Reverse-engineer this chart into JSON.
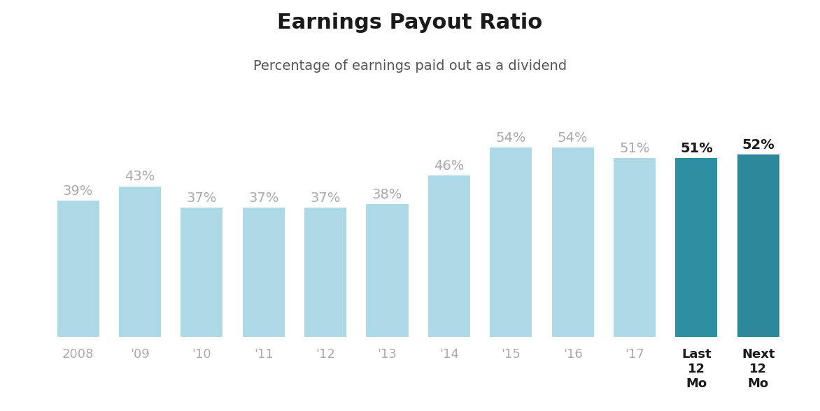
{
  "title": "Earnings Payout Ratio",
  "subtitle": "Percentage of earnings paid out as a dividend",
  "categories": [
    "2008",
    "'09",
    "'10",
    "'11",
    "'12",
    "'13",
    "'14",
    "'15",
    "'16",
    "'17",
    "Last\n12\nMo",
    "Next\n12\nMo"
  ],
  "values": [
    39,
    43,
    37,
    37,
    37,
    38,
    46,
    54,
    54,
    51,
    51,
    52
  ],
  "bar_colors": [
    "#add8e6",
    "#add8e6",
    "#add8e6",
    "#add8e6",
    "#add8e6",
    "#add8e6",
    "#add8e6",
    "#add8e6",
    "#add8e6",
    "#add8e6",
    "#2e8fa3",
    "#2b8799"
  ],
  "label_colors": [
    "#aaaaaa",
    "#aaaaaa",
    "#aaaaaa",
    "#aaaaaa",
    "#aaaaaa",
    "#aaaaaa",
    "#aaaaaa",
    "#aaaaaa",
    "#aaaaaa",
    "#aaaaaa",
    "#1a1a1a",
    "#1a1a1a"
  ],
  "label_fontweights": [
    "normal",
    "normal",
    "normal",
    "normal",
    "normal",
    "normal",
    "normal",
    "normal",
    "normal",
    "normal",
    "bold",
    "bold"
  ],
  "tick_colors": [
    "#aaaaaa",
    "#aaaaaa",
    "#aaaaaa",
    "#aaaaaa",
    "#aaaaaa",
    "#aaaaaa",
    "#aaaaaa",
    "#aaaaaa",
    "#aaaaaa",
    "#aaaaaa",
    "#1a1a1a",
    "#1a1a1a"
  ],
  "tick_fontweights": [
    "normal",
    "normal",
    "normal",
    "normal",
    "normal",
    "normal",
    "normal",
    "normal",
    "normal",
    "normal",
    "bold",
    "bold"
  ],
  "title_fontsize": 22,
  "subtitle_fontsize": 14,
  "label_fontsize": 14,
  "tick_fontsize": 13,
  "background_color": "#ffffff",
  "ylim": [
    0,
    68
  ],
  "bar_width": 0.68
}
